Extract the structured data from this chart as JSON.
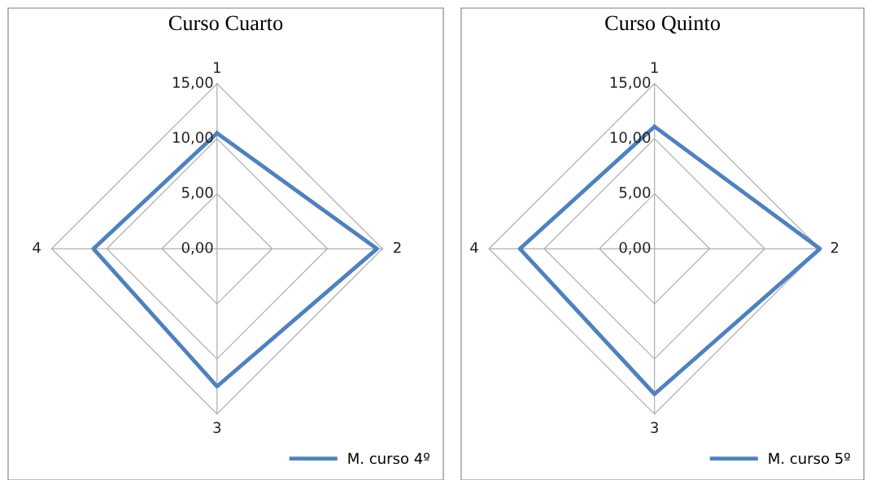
{
  "chart_data": [
    {
      "type": "radar",
      "title": "Curso Cuarto",
      "categories": [
        "1",
        "2",
        "3",
        "4"
      ],
      "ylim": [
        0,
        15
      ],
      "yticks": [
        {
          "value": 0,
          "label": "0,00"
        },
        {
          "value": 5,
          "label": "5,00"
        },
        {
          "value": 10,
          "label": "10,00"
        },
        {
          "value": 15,
          "label": "15,00"
        }
      ],
      "grid": true,
      "legend": "bottom right",
      "series": [
        {
          "name": "M. curso 4º",
          "color": "#4f81bd",
          "values": [
            10.5,
            14.5,
            12.5,
            11.2
          ]
        }
      ]
    },
    {
      "type": "radar",
      "title": "Curso Quinto",
      "categories": [
        "1",
        "2",
        "3",
        "4"
      ],
      "ylim": [
        0,
        15
      ],
      "yticks": [
        {
          "value": 0,
          "label": "0,00"
        },
        {
          "value": 5,
          "label": "5,00"
        },
        {
          "value": 10,
          "label": "10,00"
        },
        {
          "value": 15,
          "label": "15,00"
        }
      ],
      "grid": true,
      "legend": "bottom right",
      "series": [
        {
          "name": "M. curso 5º",
          "color": "#4f81bd",
          "values": [
            11.1,
            15,
            13.2,
            12.2
          ]
        }
      ]
    }
  ]
}
